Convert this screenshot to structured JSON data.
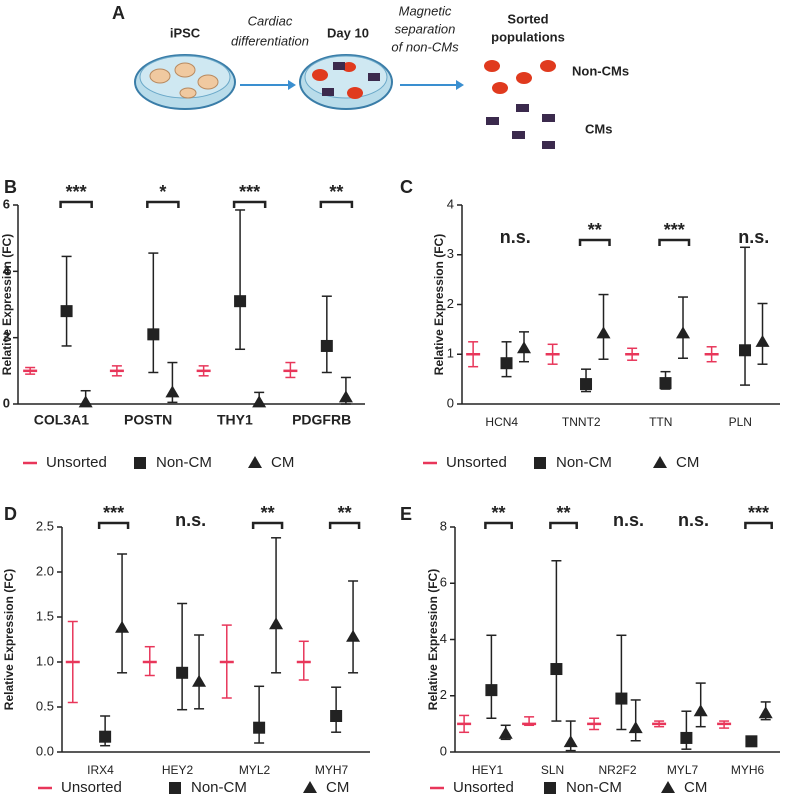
{
  "schematic": {
    "panel": "A",
    "start": "iPSC",
    "arrow1": [
      "Cardiac",
      "differentiation"
    ],
    "middle": "Day 10",
    "arrow2": [
      "Magnetic",
      "separation",
      "of non-CMs"
    ],
    "end": [
      "Sorted",
      "populations"
    ],
    "group1": "Non-CMs",
    "group2": "CMs"
  },
  "chart_data": [
    {
      "type": "errorbar",
      "panel": "B",
      "y_label": "Relative Expression (FC)",
      "categories": [
        "COL3A1",
        "POSTN",
        "THY1",
        "PDGFRB"
      ],
      "ylim": [
        0,
        6
      ],
      "yticks": [
        0,
        2,
        4,
        6
      ],
      "series": [
        {
          "name": "Unsorted",
          "color": "#e8365a",
          "marker": "dash",
          "values": [
            1,
            1,
            1,
            1
          ],
          "low": [
            0.9,
            0.85,
            0.85,
            0.8
          ],
          "high": [
            1.1,
            1.15,
            1.15,
            1.25
          ]
        },
        {
          "name": "Non-CM",
          "color": "#222222",
          "marker": "square",
          "values": [
            2.8,
            2.1,
            3.1,
            1.75
          ],
          "low": [
            1.75,
            0.95,
            1.65,
            0.95
          ],
          "high": [
            4.45,
            4.55,
            5.85,
            3.25
          ]
        },
        {
          "name": "CM",
          "color": "#222222",
          "marker": "triangle",
          "values": [
            0.05,
            0.35,
            0.05,
            0.2
          ],
          "low": [
            0,
            0.05,
            0,
            0
          ],
          "high": [
            0.4,
            1.25,
            0.35,
            0.8
          ]
        }
      ],
      "significance": [
        "***",
        "*",
        "***",
        "**"
      ]
    },
    {
      "type": "errorbar",
      "panel": "C",
      "y_label": "Relative Expression (FC)",
      "categories": [
        "HCN4",
        "TNNT2",
        "TTN",
        "PLN"
      ],
      "ylim": [
        0,
        4
      ],
      "yticks": [
        0,
        1,
        2,
        3,
        4
      ],
      "series": [
        {
          "name": "Unsorted",
          "color": "#e8365a",
          "marker": "dash",
          "values": [
            1,
            1,
            1,
            1
          ],
          "low": [
            0.75,
            0.8,
            0.88,
            0.85
          ],
          "high": [
            1.25,
            1.2,
            1.12,
            1.15
          ]
        },
        {
          "name": "Non-CM",
          "color": "#222222",
          "marker": "square",
          "values": [
            0.82,
            0.4,
            0.42,
            1.08
          ],
          "low": [
            0.55,
            0.25,
            0.3,
            0.38
          ],
          "high": [
            1.25,
            0.7,
            0.65,
            3.15
          ]
        },
        {
          "name": "CM",
          "color": "#222222",
          "marker": "triangle",
          "values": [
            1.12,
            1.42,
            1.42,
            1.25
          ],
          "low": [
            0.85,
            0.9,
            0.92,
            0.8
          ],
          "high": [
            1.45,
            2.2,
            2.15,
            2.02
          ]
        }
      ],
      "significance": [
        "n.s.",
        "**",
        "***",
        "n.s."
      ]
    },
    {
      "type": "errorbar",
      "panel": "D",
      "y_label": "Relative Expression (FC)",
      "categories": [
        "IRX4",
        "HEY2",
        "MYL2",
        "MYH7"
      ],
      "ylim": [
        0,
        2.5
      ],
      "yticks": [
        {
          "value": 0,
          "label": "0.0"
        },
        0.5,
        {
          "value": 1,
          "label": "1.0"
        },
        1.5,
        {
          "value": 2,
          "label": "2.0"
        },
        2.5
      ],
      "series": [
        {
          "name": "Unsorted",
          "color": "#e8365a",
          "marker": "dash",
          "values": [
            1,
            1,
            1,
            1
          ],
          "low": [
            0.55,
            0.85,
            0.6,
            0.8
          ],
          "high": [
            1.45,
            1.17,
            1.41,
            1.23
          ]
        },
        {
          "name": "Non-CM",
          "color": "#222222",
          "marker": "square",
          "values": [
            0.17,
            0.88,
            0.27,
            0.4
          ],
          "low": [
            0.07,
            0.47,
            0.1,
            0.22
          ],
          "high": [
            0.4,
            1.65,
            0.73,
            0.72
          ]
        },
        {
          "name": "CM",
          "color": "#222222",
          "marker": "triangle",
          "values": [
            1.38,
            0.78,
            1.42,
            1.28
          ],
          "low": [
            0.88,
            0.48,
            0.88,
            0.88
          ],
          "high": [
            2.2,
            1.3,
            2.38,
            1.9
          ]
        }
      ],
      "significance": [
        "***",
        "n.s.",
        "**",
        "**"
      ]
    },
    {
      "type": "errorbar",
      "panel": "E",
      "y_label": "Relative Expression (FC)",
      "categories": [
        "HEY1",
        "SLN",
        "NR2F2",
        "MYL7",
        "MYH6"
      ],
      "ylim": [
        0,
        8
      ],
      "yticks": [
        0,
        2,
        4,
        6,
        8
      ],
      "series": [
        {
          "name": "Unsorted",
          "color": "#e8365a",
          "marker": "dash",
          "values": [
            1,
            1,
            1,
            1,
            1
          ],
          "low": [
            0.7,
            0.95,
            0.8,
            0.9,
            0.85
          ],
          "high": [
            1.3,
            1.25,
            1.2,
            1.1,
            1.1
          ]
        },
        {
          "name": "Non-CM",
          "color": "#222222",
          "marker": "square",
          "values": [
            2.2,
            2.95,
            1.9,
            0.5,
            0.38
          ],
          "low": [
            1.2,
            1.1,
            0.8,
            0.1,
            0.3
          ],
          "high": [
            4.15,
            6.8,
            4.15,
            1.45,
            0.5
          ]
        },
        {
          "name": "CM",
          "color": "#222222",
          "marker": "triangle",
          "values": [
            0.65,
            0.35,
            0.85,
            1.45,
            1.38
          ],
          "low": [
            0.45,
            0.05,
            0.4,
            0.9,
            1.15
          ],
          "high": [
            0.95,
            1.1,
            1.85,
            2.45,
            1.78
          ]
        }
      ],
      "significance": [
        "**",
        "**",
        "n.s.",
        "n.s.",
        "***"
      ]
    }
  ]
}
